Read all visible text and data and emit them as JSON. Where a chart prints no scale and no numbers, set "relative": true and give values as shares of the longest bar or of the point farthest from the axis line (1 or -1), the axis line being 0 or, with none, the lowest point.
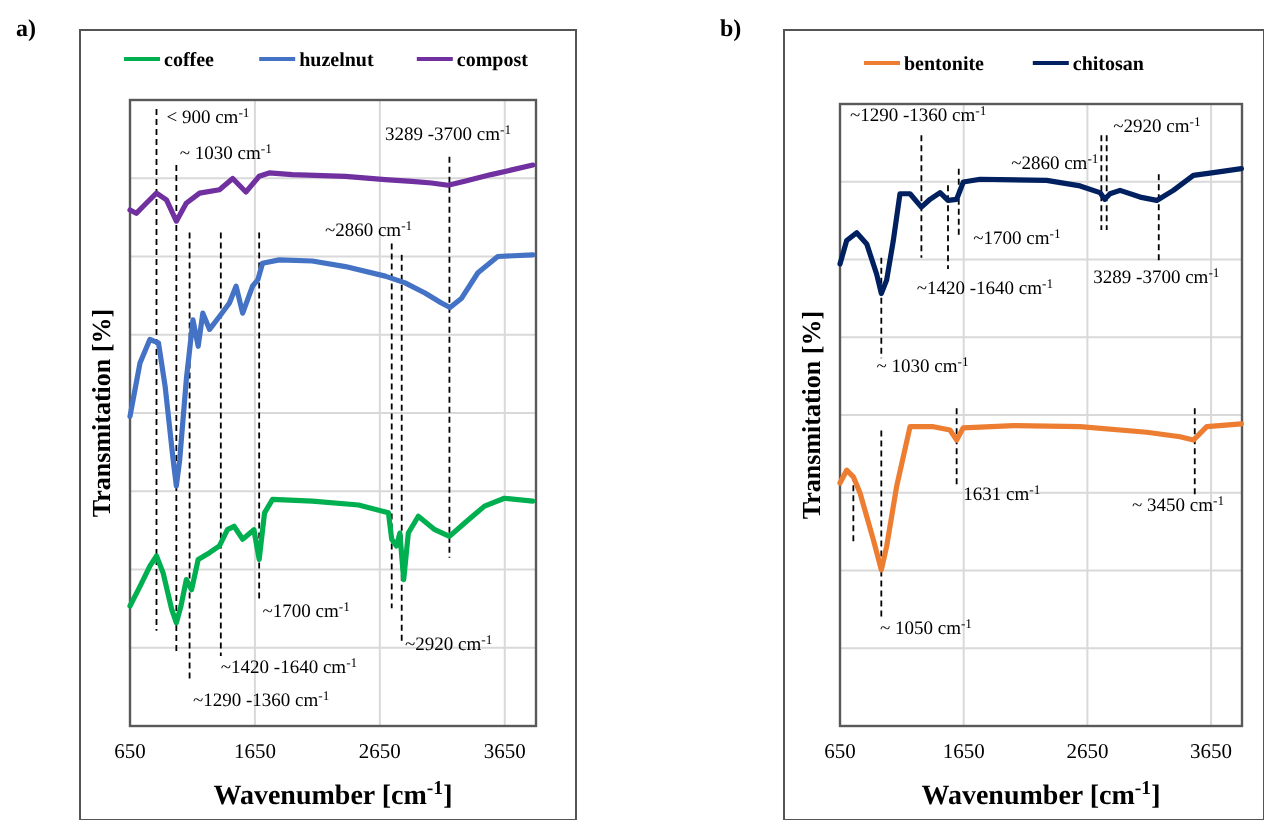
{
  "chart_data": [
    {
      "type": "line",
      "title": "a)",
      "xlabel": "Wavenumber [cm$^{-1}$]",
      "ylabel": "Transmitation [%]",
      "relative": true,
      "xlim": [
        650,
        3900
      ],
      "xticks": [
        650,
        1650,
        2650,
        3650
      ],
      "grid": true,
      "legend": "top",
      "tick_labels": "x",
      "series": [
        {
          "name": "coffee",
          "color": "#00b050",
          "x": [
            650,
            730,
            809,
            862,
            915,
            984,
            1021,
            1058,
            1101,
            1143,
            1196,
            1287,
            1366,
            1430,
            1483,
            1552,
            1642,
            1684,
            1727,
            1791,
            2109,
            2480,
            2719,
            2745,
            2783,
            2810,
            2841,
            2878,
            2958,
            3090,
            3207,
            3329,
            3488,
            3647,
            3875
          ],
          "values": [
            0.214,
            0.249,
            0.285,
            0.303,
            0.273,
            0.208,
            0.184,
            0.214,
            0.261,
            0.243,
            0.297,
            0.309,
            0.321,
            0.35,
            0.356,
            0.333,
            0.35,
            0.297,
            0.38,
            0.404,
            0.401,
            0.394,
            0.38,
            0.333,
            0.321,
            0.344,
            0.261,
            0.344,
            0.374,
            0.35,
            0.338,
            0.362,
            0.392,
            0.406,
            0.401
          ]
        },
        {
          "name": "huzelnut",
          "color": "#4472c4",
          "x": [
            650,
            730,
            809,
            878,
            931,
            995,
            1021,
            1048,
            1101,
            1154,
            1196,
            1233,
            1287,
            1366,
            1446,
            1499,
            1552,
            1631,
            1674,
            1711,
            1844,
            2109,
            2374,
            2693,
            2852,
            3011,
            3143,
            3212,
            3302,
            3435,
            3594,
            3875
          ],
          "values": [
            0.552,
            0.647,
            0.689,
            0.683,
            0.606,
            0.475,
            0.428,
            0.475,
            0.618,
            0.724,
            0.677,
            0.736,
            0.707,
            0.73,
            0.754,
            0.784,
            0.736,
            0.784,
            0.796,
            0.825,
            0.831,
            0.829,
            0.819,
            0.802,
            0.79,
            0.772,
            0.754,
            0.746,
            0.762,
            0.808,
            0.837,
            0.84
          ]
        },
        {
          "name": "compost",
          "color": "#7030a0",
          "x": [
            650,
            700,
            780,
            862,
            942,
            1021,
            1100,
            1207,
            1366,
            1472,
            1578,
            1684,
            1764,
            1950,
            2375,
            2693,
            2905,
            3064,
            3196,
            3329,
            3541,
            3875
          ],
          "values": [
            0.92,
            0.914,
            0.932,
            0.95,
            0.938,
            0.9,
            0.932,
            0.95,
            0.956,
            0.976,
            0.952,
            0.98,
            0.986,
            0.983,
            0.98,
            0.974,
            0.971,
            0.968,
            0.964,
            0.971,
            0.983,
            1.0
          ]
        }
      ],
      "annotations": [
        "< 900 cm$^{-1}$",
        "~ 1030 cm$^{-1}$",
        "3289 -3700 cm$^{-1}$",
        "~2860 cm$^{-1}$",
        "~1700 cm$^{-1}$",
        "~2920 cm$^{-1}$",
        "~1420 -1640 cm$^{-1}$",
        "~1290 -1360 cm$^{-1}$"
      ]
    },
    {
      "type": "line",
      "title": "b)",
      "xlabel": "Wavenumber [cm$^{-1}$]",
      "ylabel": "Transmitation [%]",
      "relative": true,
      "xlim": [
        650,
        3900
      ],
      "xticks": [
        650,
        1650,
        2650,
        3650
      ],
      "grid": true,
      "legend": "top",
      "tick_labels": "x",
      "series": [
        {
          "name": "bentonite",
          "color": "#ed7d31",
          "x": [
            650,
            704,
            758,
            812,
            920,
            984,
            1027,
            1108,
            1216,
            1405,
            1539,
            1593,
            1647,
            2052,
            2591,
            3130,
            3399,
            3507,
            3615,
            3895
          ],
          "values": [
            0.436,
            0.459,
            0.447,
            0.418,
            0.334,
            0.28,
            0.322,
            0.43,
            0.537,
            0.537,
            0.531,
            0.513,
            0.535,
            0.539,
            0.537,
            0.527,
            0.519,
            0.513,
            0.537,
            0.542
          ]
        },
        {
          "name": "chitosan",
          "color": "#002060",
          "x": [
            650,
            704,
            785,
            866,
            946,
            984,
            1027,
            1081,
            1135,
            1216,
            1308,
            1378,
            1459,
            1523,
            1593,
            1647,
            1782,
            2321,
            2591,
            2752,
            2790,
            2833,
            2914,
            3076,
            3211,
            3345,
            3507,
            3669,
            3895
          ],
          "values": [
            0.829,
            0.871,
            0.885,
            0.865,
            0.811,
            0.776,
            0.8,
            0.871,
            0.955,
            0.955,
            0.931,
            0.945,
            0.957,
            0.943,
            0.945,
            0.976,
            0.981,
            0.979,
            0.969,
            0.957,
            0.945,
            0.955,
            0.961,
            0.949,
            0.943,
            0.961,
            0.988,
            0.993,
            1.0
          ]
        }
      ],
      "annotations": [
        "~1290 -1360 cm$^{-1}$",
        "~2920 cm$^{-1}$",
        "~2860 cm$^{-1}$",
        "~1700 cm$^{-1}$",
        "~1420 -1640 cm$^{-1}$",
        "3289 -3700 cm$^{-1}$",
        "~ 1030 cm$^{-1}$",
        "1631 cm$^{-1}$",
        "~ 3450 cm$^{-1}$",
        "~ 1050 cm$^{-1}$"
      ]
    }
  ]
}
